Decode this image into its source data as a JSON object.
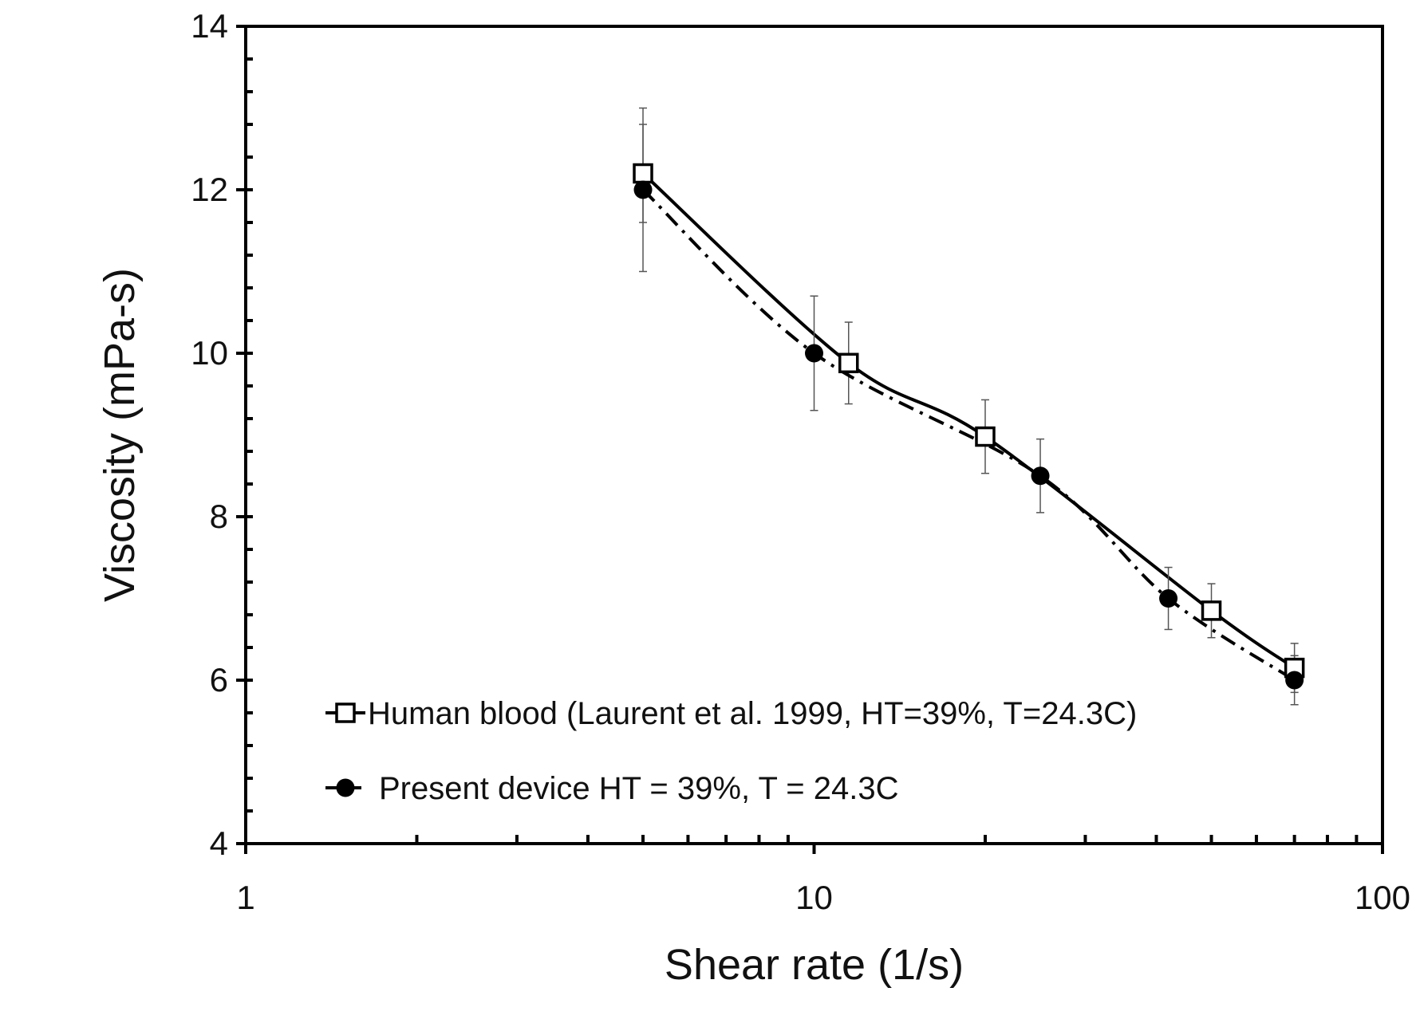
{
  "chart_data": {
    "type": "line",
    "title": "",
    "xlabel": "Shear rate (1/s)",
    "ylabel": "Viscosity (mPa-s)",
    "x_scale": "log",
    "xlim": [
      1,
      100
    ],
    "ylim": [
      4,
      14
    ],
    "x_ticks": [
      1,
      10,
      100
    ],
    "x_tick_labels": [
      "1",
      "10",
      "100"
    ],
    "y_ticks": [
      4,
      6,
      8,
      10,
      12,
      14
    ],
    "y_tick_labels": [
      "4",
      "6",
      "8",
      "10",
      "12",
      "14"
    ],
    "grid": false,
    "legend_position": "bottom-left",
    "series": [
      {
        "name": "Human blood (Laurent et al. 1999, HT=39%, T=24.3C)",
        "marker": "open-square",
        "line_style": "solid",
        "color": "#000000",
        "x": [
          5,
          11.5,
          20,
          50,
          70
        ],
        "y": [
          12.2,
          9.88,
          8.98,
          6.85,
          6.15
        ],
        "error": [
          0.6,
          0.5,
          0.45,
          0.33,
          0.3
        ]
      },
      {
        "name": "Present device HT = 39%, T = 24.3C",
        "marker": "filled-circle",
        "line_style": "dash-dot",
        "color": "#000000",
        "x": [
          5,
          10,
          25,
          42,
          70
        ],
        "y": [
          12.0,
          10.0,
          8.5,
          7.0,
          6.0
        ],
        "error": [
          1.0,
          0.7,
          0.45,
          0.38,
          0.3
        ]
      }
    ]
  }
}
